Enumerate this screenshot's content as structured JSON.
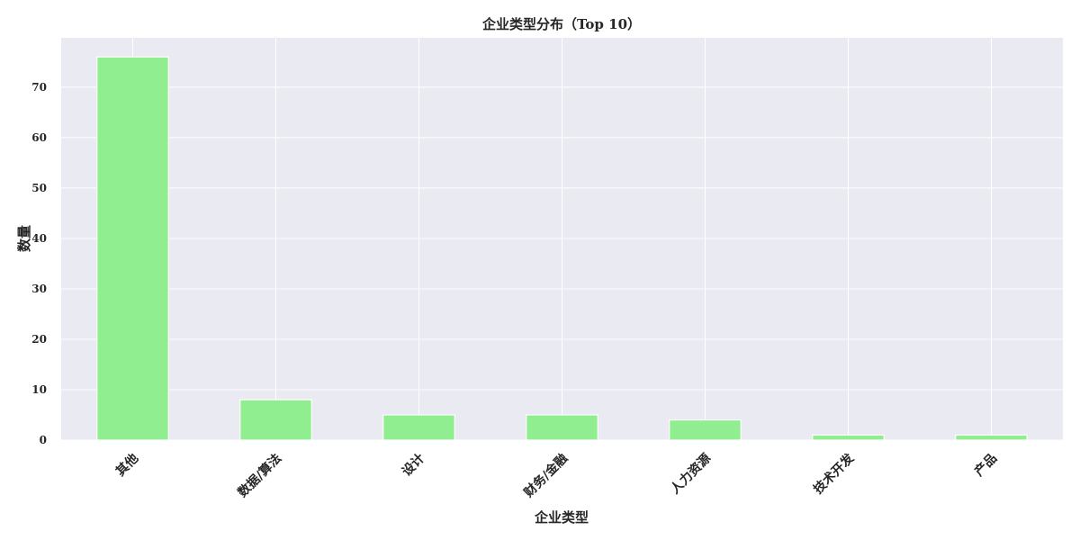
{
  "chart_data": {
    "type": "bar",
    "title": "企业类型分布（Top 10）",
    "xlabel": "企业类型",
    "ylabel": "数量",
    "categories": [
      "其他",
      "数据/算法",
      "设计",
      "财务/金融",
      "人力资源",
      "技术开发",
      "产品"
    ],
    "values": [
      76,
      8,
      5,
      5,
      4,
      1,
      1
    ],
    "ylim": [
      0,
      79.8
    ],
    "yticks": [
      0,
      10,
      20,
      30,
      40,
      50,
      60,
      70
    ],
    "grid": true,
    "colors": {
      "bar": "#90ee90",
      "plot_background": "#eaeaf2",
      "grid": "#ffffff",
      "text": "#262626"
    }
  }
}
